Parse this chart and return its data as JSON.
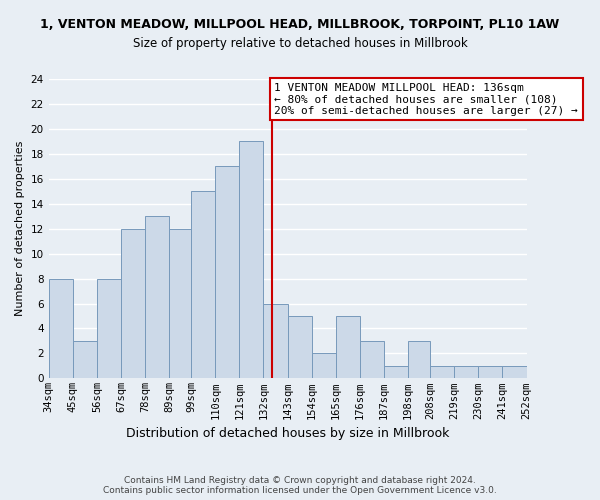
{
  "title": "1, VENTON MEADOW, MILLPOOL HEAD, MILLBROOK, TORPOINT, PL10 1AW",
  "subtitle": "Size of property relative to detached houses in Millbrook",
  "xlabel": "Distribution of detached houses by size in Millbrook",
  "ylabel": "Number of detached properties",
  "bins": [
    34,
    45,
    56,
    67,
    78,
    89,
    99,
    110,
    121,
    132,
    143,
    154,
    165,
    176,
    187,
    198,
    208,
    219,
    230,
    241,
    252
  ],
  "bin_labels": [
    "34sqm",
    "45sqm",
    "56sqm",
    "67sqm",
    "78sqm",
    "89sqm",
    "99sqm",
    "110sqm",
    "121sqm",
    "132sqm",
    "143sqm",
    "154sqm",
    "165sqm",
    "176sqm",
    "187sqm",
    "198sqm",
    "208sqm",
    "219sqm",
    "230sqm",
    "241sqm",
    "252sqm"
  ],
  "counts": [
    8,
    3,
    8,
    12,
    13,
    12,
    15,
    17,
    19,
    6,
    5,
    2,
    5,
    3,
    1,
    3,
    1,
    1,
    1,
    1
  ],
  "bar_color": "#ccd9e8",
  "bar_edge_color": "#7799bb",
  "vline_x": 136,
  "vline_color": "#cc0000",
  "annotation_text": "1 VENTON MEADOW MILLPOOL HEAD: 136sqm\n← 80% of detached houses are smaller (108)\n20% of semi-detached houses are larger (27) →",
  "annotation_box_color": "white",
  "annotation_box_edge_color": "#cc0000",
  "ylim": [
    0,
    24
  ],
  "yticks": [
    0,
    2,
    4,
    6,
    8,
    10,
    12,
    14,
    16,
    18,
    20,
    22,
    24
  ],
  "footer1": "Contains HM Land Registry data © Crown copyright and database right 2024.",
  "footer2": "Contains public sector information licensed under the Open Government Licence v3.0.",
  "bg_color": "#e8eef4",
  "grid_color": "white",
  "title_fontsize": 9.0,
  "subtitle_fontsize": 8.5,
  "ylabel_fontsize": 8.0,
  "xlabel_fontsize": 9.0,
  "tick_fontsize": 7.5,
  "annotation_fontsize": 8.0,
  "footer_fontsize": 6.5
}
